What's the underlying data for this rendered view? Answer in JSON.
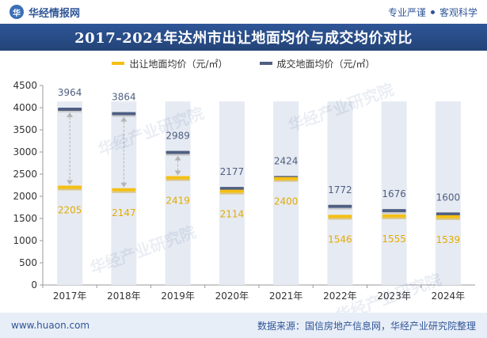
{
  "header": {
    "brand": "华经情报网",
    "tagline_1": "专业严谨",
    "tagline_2": "客观科学"
  },
  "title": "2017-2024年达州市出让地面均价与成交均价对比",
  "footer": {
    "left": "www.huaon.com",
    "right": "数据来源：国信房地产信息网，华经产业研究院整理"
  },
  "watermark": "华经产业研究院",
  "colors": {
    "accent": "#2e5597",
    "series_sell": "#f5bf13",
    "series_deal": "#4f5f82",
    "column_bg": "#e6eaf2"
  },
  "chart_data": {
    "type": "dumbbell",
    "title": "2017-2024年达州市出让地面均价与成交均价对比",
    "categories": [
      "2017年",
      "2018年",
      "2019年",
      "2020年",
      "2021年",
      "2022年",
      "2023年",
      "2024年"
    ],
    "series": [
      {
        "name": "出让地面均价（元/㎡）",
        "values": [
          2205,
          2147,
          2419,
          2114,
          2400,
          1546,
          1555,
          1539
        ]
      },
      {
        "name": "成交地面均价（元/㎡）",
        "values": [
          3964,
          3864,
          2989,
          2177,
          2424,
          1772,
          1676,
          1600
        ]
      }
    ],
    "ylim": [
      0,
      4500
    ],
    "yticks": [
      0,
      500,
      1000,
      1500,
      2000,
      2500,
      3000,
      3500,
      4000,
      4500
    ],
    "grid": false,
    "legend": "top-center"
  }
}
